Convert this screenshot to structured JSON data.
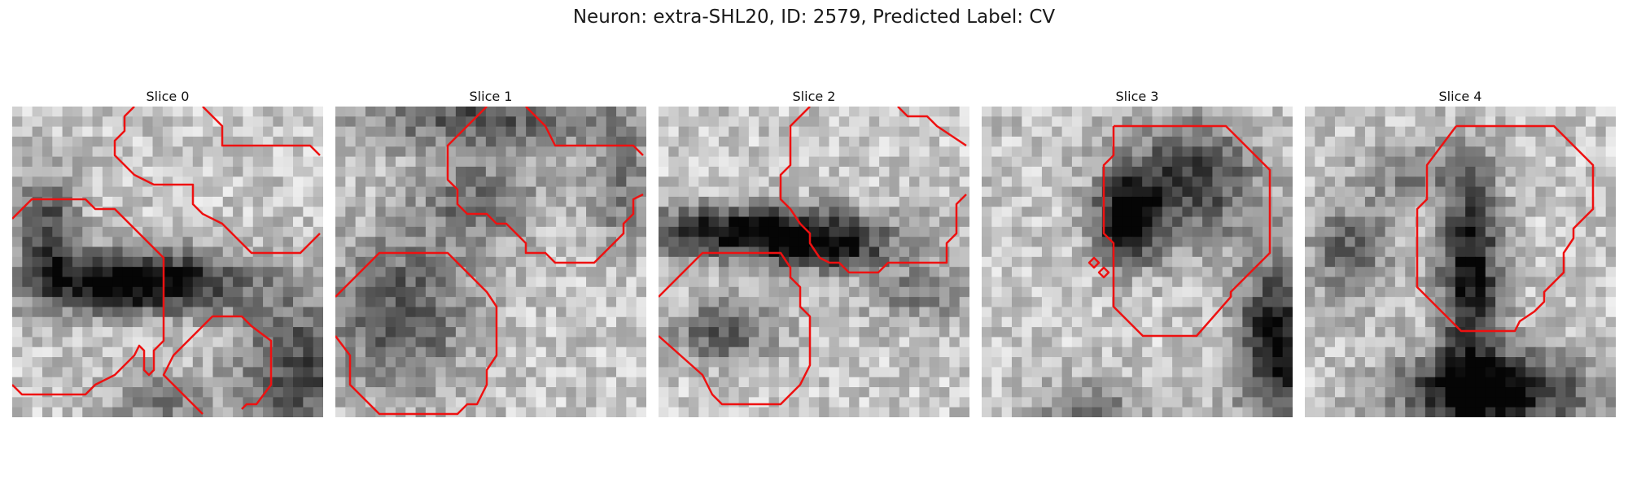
{
  "figure": {
    "title": "Neuron: extra-SHL20, ID: 2579, Predicted Label: CV"
  },
  "colors": {
    "contour": "#ee1111",
    "background": "#ffffff"
  },
  "panels": [
    {
      "title": "Slice 0"
    },
    {
      "title": "Slice 1"
    },
    {
      "title": "Slice 2"
    },
    {
      "title": "Slice 3"
    },
    {
      "title": "Slice 4"
    }
  ]
}
